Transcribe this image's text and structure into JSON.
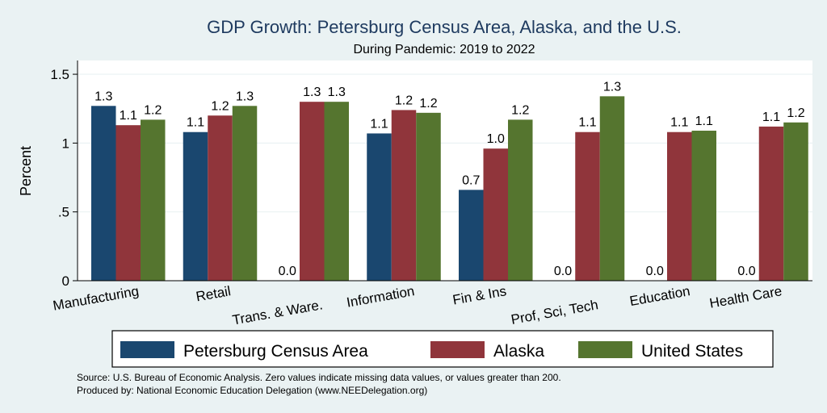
{
  "chart_data": {
    "type": "bar",
    "title": "GDP Growth: Petersburg Census Area, Alaska, and the U.S.",
    "subtitle": "During Pandemic: 2019 to 2022",
    "ylabel": "Percent",
    "ylim": [
      0,
      1.6
    ],
    "yticks": [
      0,
      0.5,
      1,
      1.5
    ],
    "ytick_labels": [
      "0",
      ".5",
      "1",
      "1.5"
    ],
    "grid": true,
    "legend_position": "bottom",
    "categories": [
      "Manufacturing",
      "Retail",
      "Trans. & Ware.",
      "Information",
      "Fin & Ins",
      "Prof, Sci, Tech",
      "Education",
      "Health Care"
    ],
    "series": [
      {
        "name": "Petersburg Census Area",
        "color": "#1a476f",
        "values": [
          1.27,
          1.08,
          0.0,
          1.07,
          0.66,
          0.0,
          0.0,
          0.0
        ],
        "labels": [
          "1.3",
          "1.1",
          "0.0",
          "1.1",
          "0.7",
          "0.0",
          "0.0",
          "0.0"
        ]
      },
      {
        "name": "Alaska",
        "color": "#90353b",
        "values": [
          1.13,
          1.2,
          1.3,
          1.24,
          0.96,
          1.08,
          1.08,
          1.12
        ],
        "labels": [
          "1.1",
          "1.2",
          "1.3",
          "1.2",
          "1.0",
          "1.1",
          "1.1",
          "1.1"
        ]
      },
      {
        "name": "United States",
        "color": "#55752f",
        "values": [
          1.17,
          1.27,
          1.3,
          1.22,
          1.17,
          1.34,
          1.09,
          1.15
        ],
        "labels": [
          "1.2",
          "1.3",
          "1.3",
          "1.2",
          "1.2",
          "1.3",
          "1.1",
          "1.2"
        ]
      }
    ],
    "source_lines": [
      "Source: U.S. Bureau of Economic Analysis. Zero values indicate missing data values, or values greater than 200.",
      "Produced by: National Economic Education Delegation (www.NEEDelegation.org)"
    ]
  }
}
